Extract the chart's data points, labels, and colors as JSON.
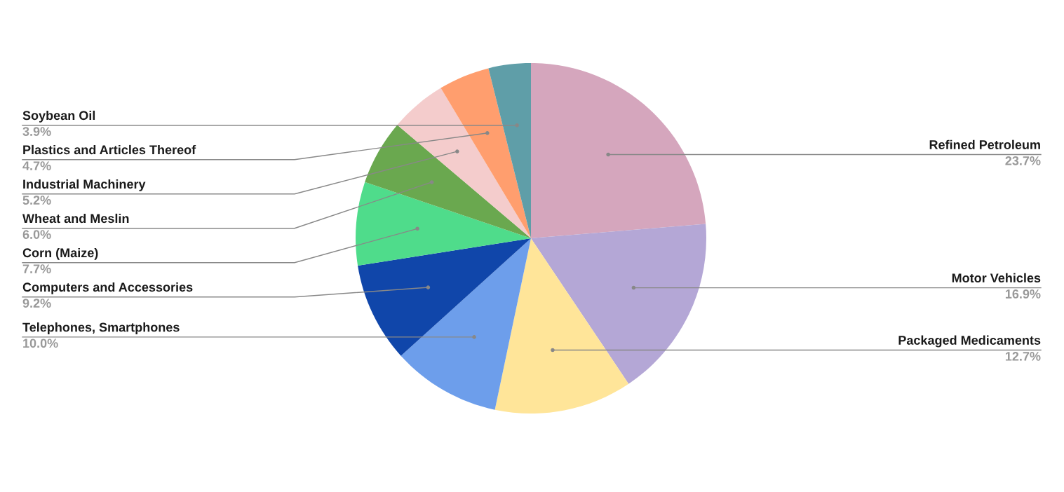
{
  "chart_data": {
    "type": "pie",
    "categories": [
      "Refined Petroleum",
      "Motor Vehicles",
      "Packaged Medicaments",
      "Telephones, Smartphones",
      "Computers and Accessories",
      "Corn (Maize)",
      "Wheat and Meslin",
      "Industrial Machinery",
      "Plastics and Articles Thereof",
      "Soybean Oil"
    ],
    "values": [
      23.7,
      16.9,
      12.7,
      10.0,
      9.2,
      7.7,
      6.0,
      5.2,
      4.7,
      3.9
    ],
    "value_labels": [
      "23.7%",
      "16.9%",
      "12.7%",
      "10.0%",
      "9.2%",
      "7.7%",
      "6.0%",
      "5.2%",
      "4.7%",
      "3.9%"
    ],
    "colors": [
      "#d5a6bd",
      "#b4a7d6",
      "#ffe599",
      "#6d9eeb",
      "#1046aa",
      "#4fdc8b",
      "#6aa84f",
      "#f4cccc",
      "#ff9e6e",
      "#5f9ea8"
    ]
  }
}
